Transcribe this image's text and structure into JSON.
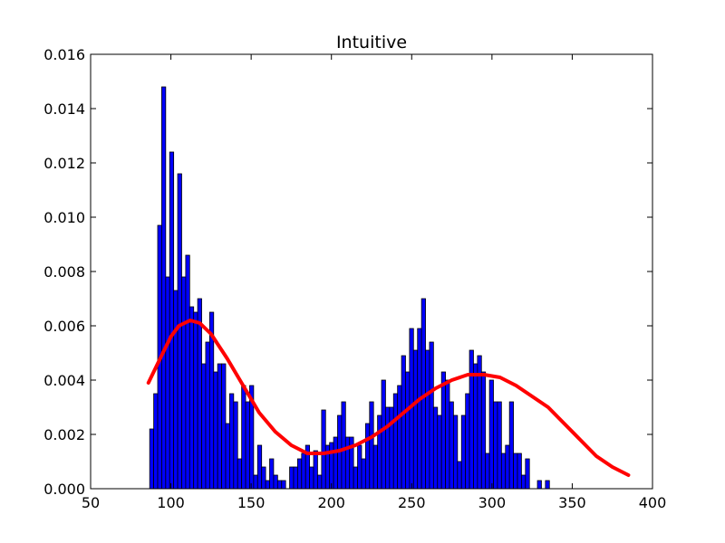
{
  "chart_data": {
    "type": "bar",
    "title": "Intuitive",
    "xlabel": "",
    "ylabel": "",
    "xlim": [
      50,
      400
    ],
    "ylim": [
      0,
      0.016
    ],
    "x_ticks": [
      "50",
      "100",
      "150",
      "200",
      "250",
      "300",
      "350",
      "400"
    ],
    "y_ticks": [
      "0.000",
      "0.002",
      "0.004",
      "0.006",
      "0.008",
      "0.010",
      "0.012",
      "0.014",
      "0.016"
    ],
    "grid": false,
    "legend": "none",
    "bar_color": "#0000ff",
    "bar_edge_color": "#000000",
    "bin_start": 86.8,
    "bin_width": 2.49,
    "bin_values": [
      0.0022,
      0.0035,
      0.0097,
      0.0148,
      0.0078,
      0.0124,
      0.0073,
      0.0116,
      0.0078,
      0.0086,
      0.0067,
      0.0065,
      0.007,
      0.0046,
      0.0054,
      0.0065,
      0.0043,
      0.0046,
      0.0046,
      0.0024,
      0.0035,
      0.0032,
      0.0011,
      0.0038,
      0.0032,
      0.0038,
      0.0005,
      0.0016,
      0.0008,
      0.0003,
      0.0011,
      0.0005,
      0.0003,
      0.0003,
      0.0,
      0.0008,
      0.0008,
      0.0011,
      0.0013,
      0.0016,
      0.0008,
      0.0014,
      0.0005,
      0.0029,
      0.0016,
      0.0017,
      0.0019,
      0.0027,
      0.0032,
      0.0019,
      0.0019,
      0.0008,
      0.0016,
      0.0011,
      0.0024,
      0.0032,
      0.0016,
      0.0027,
      0.004,
      0.003,
      0.003,
      0.0035,
      0.0038,
      0.0049,
      0.0043,
      0.0059,
      0.0051,
      0.0059,
      0.007,
      0.0051,
      0.0054,
      0.003,
      0.0027,
      0.0043,
      0.004,
      0.0032,
      0.0027,
      0.001,
      0.0027,
      0.0035,
      0.0051,
      0.0046,
      0.0049,
      0.0043,
      0.0013,
      0.004,
      0.0032,
      0.0032,
      0.0013,
      0.0016,
      0.0032,
      0.0013,
      0.0013,
      0.0005,
      0.0011,
      0.0,
      0.0,
      0.0003,
      0.0,
      0.0003
    ],
    "series": [
      {
        "type": "line",
        "color": "#ff0000",
        "x": [
          86,
          95,
          100,
          105,
          112,
          118,
          125,
          135,
          145,
          155,
          165,
          175,
          185,
          195,
          205,
          215,
          225,
          235,
          245,
          255,
          265,
          275,
          285,
          290,
          295,
          305,
          315,
          325,
          335,
          345,
          355,
          365,
          375,
          385
        ],
        "y": [
          0.0039,
          0.005,
          0.0056,
          0.006,
          0.0062,
          0.0061,
          0.0057,
          0.0048,
          0.0038,
          0.0028,
          0.0021,
          0.0016,
          0.0013,
          0.0013,
          0.0014,
          0.0016,
          0.0019,
          0.0023,
          0.0028,
          0.0033,
          0.0037,
          0.004,
          0.0042,
          0.0042,
          0.0042,
          0.0041,
          0.0038,
          0.0034,
          0.003,
          0.0024,
          0.0018,
          0.0012,
          0.0008,
          0.0005
        ]
      }
    ]
  }
}
